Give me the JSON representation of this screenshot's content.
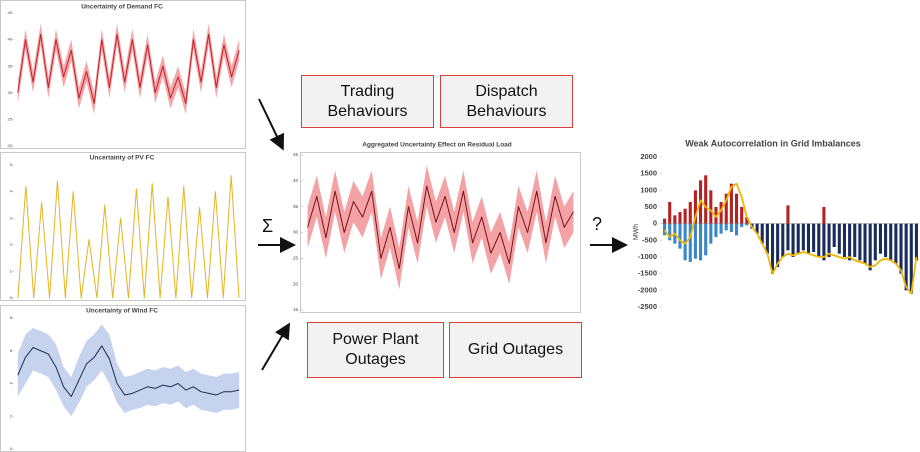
{
  "chart_data": [
    {
      "type": "line",
      "title": "Uncertainty of Demand FC",
      "ylim": [
        20,
        45
      ],
      "yticks": [
        20,
        25,
        30,
        35,
        40,
        45
      ],
      "series": [
        {
          "color": "#c0202a",
          "band_color": "#f4a6a8",
          "values": [
            30,
            40,
            32,
            41,
            31,
            40,
            33,
            38,
            29,
            34,
            28,
            40,
            31,
            41,
            32,
            40,
            31,
            39,
            30,
            35,
            29,
            33,
            28,
            40,
            32,
            41,
            31,
            39,
            33,
            38
          ],
          "lower": [
            28,
            38,
            30,
            39,
            29,
            38,
            31,
            36,
            27,
            32,
            26,
            38,
            29,
            39,
            30,
            38,
            29,
            37,
            28,
            33,
            27,
            31,
            26,
            38,
            30,
            39,
            29,
            37,
            31,
            36
          ],
          "upper": [
            32,
            42,
            34,
            43,
            33,
            42,
            35,
            40,
            31,
            36,
            30,
            42,
            33,
            43,
            34,
            42,
            33,
            41,
            32,
            37,
            31,
            35,
            30,
            42,
            34,
            43,
            33,
            41,
            35,
            40
          ]
        }
      ]
    },
    {
      "type": "line",
      "title": "Uncertainty of PV FC",
      "ylim": [
        0,
        5
      ],
      "yticks": [
        0,
        1,
        2,
        3,
        4,
        5
      ],
      "series": [
        {
          "color": "#e6b422",
          "values": [
            0,
            4.2,
            0,
            3.6,
            0,
            4.4,
            0,
            4.0,
            0,
            2.2,
            0,
            3.5,
            0,
            3.0,
            0,
            4.1,
            0,
            4.3,
            0,
            3.8,
            0,
            4.2,
            0,
            3.4,
            0,
            4.0,
            0,
            4.6,
            0
          ]
        }
      ]
    },
    {
      "type": "line",
      "title": "Uncertainty of Wind FC",
      "ylim": [
        0,
        8
      ],
      "yticks": [
        0,
        2,
        4,
        6,
        8
      ],
      "series": [
        {
          "color": "#1f2d4f",
          "band_color": "#c5d3ef",
          "values": [
            4.5,
            5.6,
            6.2,
            6.0,
            5.8,
            5.0,
            3.8,
            3.2,
            4.2,
            5.2,
            5.6,
            6.3,
            5.5,
            4.0,
            3.3,
            3.4,
            3.6,
            3.8,
            3.7,
            3.9,
            3.8,
            4.0,
            3.6,
            3.8,
            3.5,
            3.4,
            3.3,
            3.5,
            3.5,
            3.6
          ],
          "lower": [
            3.2,
            4.0,
            4.8,
            4.6,
            4.4,
            3.6,
            2.6,
            2.0,
            2.8,
            3.8,
            4.2,
            4.8,
            4.0,
            2.8,
            2.2,
            2.4,
            2.5,
            2.7,
            2.6,
            2.8,
            2.7,
            2.9,
            2.5,
            2.7,
            2.4,
            2.3,
            2.2,
            2.4,
            2.4,
            2.5
          ],
          "upper": [
            5.8,
            7.0,
            7.4,
            7.2,
            7.0,
            6.4,
            5.0,
            4.4,
            5.6,
            6.6,
            7.0,
            7.6,
            7.0,
            5.2,
            4.4,
            4.5,
            4.7,
            4.9,
            4.8,
            5.0,
            4.9,
            5.1,
            4.7,
            4.9,
            4.6,
            4.5,
            4.4,
            4.6,
            4.6,
            4.7
          ]
        }
      ]
    },
    {
      "type": "line",
      "title": "Aggregated Uncertainty Effect on Residual Load",
      "ylim": [
        15,
        45
      ],
      "yticks": [
        15,
        20,
        25,
        30,
        35,
        40,
        45
      ],
      "series": [
        {
          "color": "#7a1015",
          "band_color": "#f3a3a6",
          "values": [
            31,
            37,
            29,
            38,
            30,
            36,
            33,
            38,
            25,
            31,
            23,
            35,
            28,
            39,
            32,
            37,
            30,
            38,
            28,
            33,
            26,
            30,
            24,
            35,
            30,
            38,
            28,
            37,
            31,
            34
          ],
          "lower": [
            27,
            33,
            25,
            34,
            26,
            32,
            29,
            34,
            21,
            27,
            19,
            31,
            24,
            35,
            28,
            33,
            26,
            34,
            24,
            29,
            22,
            26,
            20,
            31,
            26,
            34,
            24,
            33,
            27,
            30
          ],
          "upper": [
            35,
            41,
            33,
            42,
            34,
            40,
            37,
            42,
            29,
            35,
            27,
            39,
            32,
            43,
            36,
            41,
            34,
            42,
            32,
            37,
            30,
            34,
            28,
            39,
            34,
            42,
            32,
            41,
            35,
            38
          ]
        }
      ]
    },
    {
      "type": "bar",
      "title": "Weak Autocorrelation in Grid Imbalances",
      "y_label": "MWh",
      "ylim": [
        -2500,
        2000
      ],
      "yticks": [
        -2500,
        -2000,
        -1500,
        -1000,
        -500,
        0,
        500,
        1000,
        1500,
        2000
      ],
      "series": [
        {
          "type": "bar",
          "color": "#b22222",
          "values": [
            150,
            650,
            250,
            350,
            450,
            650,
            1000,
            1300,
            1450,
            1000,
            500,
            650,
            900,
            1200,
            900,
            500,
            200,
            null,
            null,
            null,
            null,
            null,
            null,
            null,
            550,
            null,
            null,
            null,
            null,
            null,
            null,
            500,
            null,
            null,
            null,
            null,
            null,
            null,
            null,
            null,
            null,
            null,
            null,
            null,
            null,
            null,
            null,
            null,
            null,
            null
          ]
        },
        {
          "type": "bar",
          "color": "#3a86c8",
          "values": [
            -350,
            -500,
            -600,
            -750,
            -1100,
            -1150,
            -1050,
            -1100,
            -950,
            -600,
            -400,
            -300,
            -200,
            -250,
            -350,
            -100,
            -50,
            null,
            null,
            null,
            null,
            null,
            null,
            null,
            null,
            null,
            null,
            null,
            null,
            null,
            null,
            null,
            null,
            null,
            null,
            null,
            null,
            null,
            null,
            null,
            null,
            null,
            null,
            null,
            null,
            null,
            null,
            null,
            null,
            null
          ]
        },
        {
          "type": "bar",
          "color": "#1a2c5b",
          "values": [
            null,
            null,
            null,
            null,
            null,
            null,
            null,
            null,
            null,
            null,
            null,
            null,
            null,
            null,
            null,
            null,
            null,
            -150,
            -300,
            -600,
            -900,
            -1500,
            -1300,
            -1000,
            -800,
            -1000,
            -900,
            -800,
            -900,
            -850,
            -1000,
            -1100,
            -1000,
            -700,
            -900,
            -1000,
            -1100,
            -1000,
            -1100,
            -1200,
            -1400,
            -1100,
            -900,
            -1000,
            -1100,
            -1200,
            -1500,
            -2000,
            -2100,
            -1100
          ]
        },
        {
          "type": "line",
          "color": "#f2b705",
          "values": [
            -200,
            -400,
            -300,
            -500,
            -600,
            -400,
            200,
            700,
            500,
            400,
            200,
            400,
            700,
            1100,
            1200,
            800,
            200,
            -100,
            -300,
            -600,
            -900,
            -1500,
            -1200,
            -1000,
            -900,
            -950,
            -900,
            -850,
            -900,
            -950,
            -1000,
            -1000,
            -900,
            -950,
            -1000,
            -1050,
            -1000,
            -1100,
            -1150,
            -1200,
            -1300,
            -1250,
            -1100,
            -1050,
            -1100,
            -1200,
            -1400,
            -1900,
            -2100,
            -1000
          ]
        }
      ]
    }
  ],
  "boxes": [
    "Trading Behaviours",
    "Dispatch Behaviours",
    "Power Plant Outages",
    "Grid Outages"
  ],
  "symbols": {
    "sum": "Σ",
    "question": "?"
  }
}
